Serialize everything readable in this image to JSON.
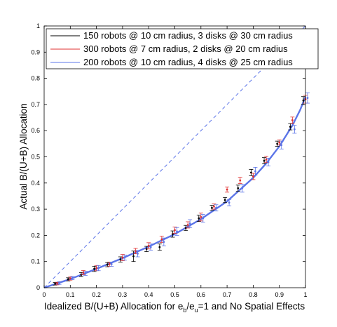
{
  "chart_data": {
    "type": "scatter",
    "xlabel_main": "Idealized B/(U+B) Allocation for e",
    "xlabel_sub1": "b",
    "xlabel_mid": "/e",
    "xlabel_sub2": "u",
    "xlabel_tail": "=1 and No Spatial Effects",
    "ylabel": "Actual B/(U+B) Allocation",
    "xlim": [
      0,
      1
    ],
    "ylim": [
      0,
      1
    ],
    "xticks": [
      "0",
      "0.1",
      "0.2",
      "0.3",
      "0.4",
      "0.5",
      "0.6",
      "0.7",
      "0.8",
      "0.9",
      "1"
    ],
    "yticks": [
      "0",
      "0.1",
      "0.2",
      "0.3",
      "0.4",
      "0.5",
      "0.6",
      "0.7",
      "0.8",
      "0.9",
      "1"
    ],
    "legend_position": "top-right",
    "x": [
      0.05,
      0.1,
      0.15,
      0.2,
      0.25,
      0.3,
      0.35,
      0.4,
      0.45,
      0.5,
      0.55,
      0.6,
      0.65,
      0.7,
      0.75,
      0.8,
      0.85,
      0.9,
      0.95,
      1.0
    ],
    "series": [
      {
        "name": "150 robots @ 10 cm radius, 3 disks @ 30 cm radius",
        "color": "#000000",
        "values": [
          0.015,
          0.032,
          0.05,
          0.072,
          0.088,
          0.108,
          0.12,
          0.148,
          0.155,
          0.205,
          0.228,
          0.265,
          0.305,
          0.335,
          0.38,
          0.44,
          0.485,
          0.55,
          0.615,
          0.715
        ],
        "errors": [
          0.005,
          0.006,
          0.008,
          0.01,
          0.008,
          0.01,
          0.02,
          0.01,
          0.012,
          0.012,
          0.01,
          0.012,
          0.01,
          0.01,
          0.012,
          0.012,
          0.012,
          0.01,
          0.012,
          0.015
        ]
      },
      {
        "name": "300 robots @ 7 cm radius, 2 disks @ 20 cm radius",
        "color": "#e03030",
        "values": [
          0.016,
          0.035,
          0.058,
          0.075,
          0.09,
          0.115,
          0.14,
          0.16,
          0.185,
          0.22,
          0.24,
          0.27,
          0.31,
          0.375,
          0.41,
          0.425,
          0.49,
          0.555,
          0.64,
          0.72
        ],
        "errors": [
          0.005,
          0.006,
          0.008,
          0.01,
          0.008,
          0.012,
          0.01,
          0.012,
          0.012,
          0.012,
          0.012,
          0.015,
          0.01,
          0.01,
          0.012,
          0.012,
          0.012,
          0.01,
          0.012,
          0.015
        ]
      },
      {
        "name": "200 robots @ 10 cm radius, 4 disks @ 25 cm radius",
        "color": "#5b74e8",
        "values": [
          0.018,
          0.037,
          0.055,
          0.075,
          0.09,
          0.115,
          0.13,
          0.155,
          0.175,
          0.215,
          0.245,
          0.265,
          0.305,
          0.325,
          0.38,
          0.445,
          0.48,
          0.545,
          0.605,
          0.725
        ],
        "errors": [
          0.005,
          0.006,
          0.008,
          0.01,
          0.008,
          0.01,
          0.012,
          0.012,
          0.015,
          0.015,
          0.015,
          0.015,
          0.012,
          0.012,
          0.015,
          0.015,
          0.015,
          0.015,
          0.015,
          0.02
        ]
      }
    ],
    "fit_curve": {
      "color": "#5b74e8",
      "x": [
        0,
        0.1,
        0.2,
        0.3,
        0.4,
        0.5,
        0.6,
        0.7,
        0.8,
        0.85,
        0.9,
        0.95,
        0.98,
        1.0
      ],
      "y": [
        0,
        0.033,
        0.072,
        0.113,
        0.157,
        0.205,
        0.262,
        0.33,
        0.42,
        0.475,
        0.54,
        0.62,
        0.68,
        0.73
      ]
    },
    "reference_line": {
      "color": "#5b74e8",
      "style": "dashed",
      "x": [
        0,
        1
      ],
      "y": [
        0,
        1
      ]
    }
  }
}
